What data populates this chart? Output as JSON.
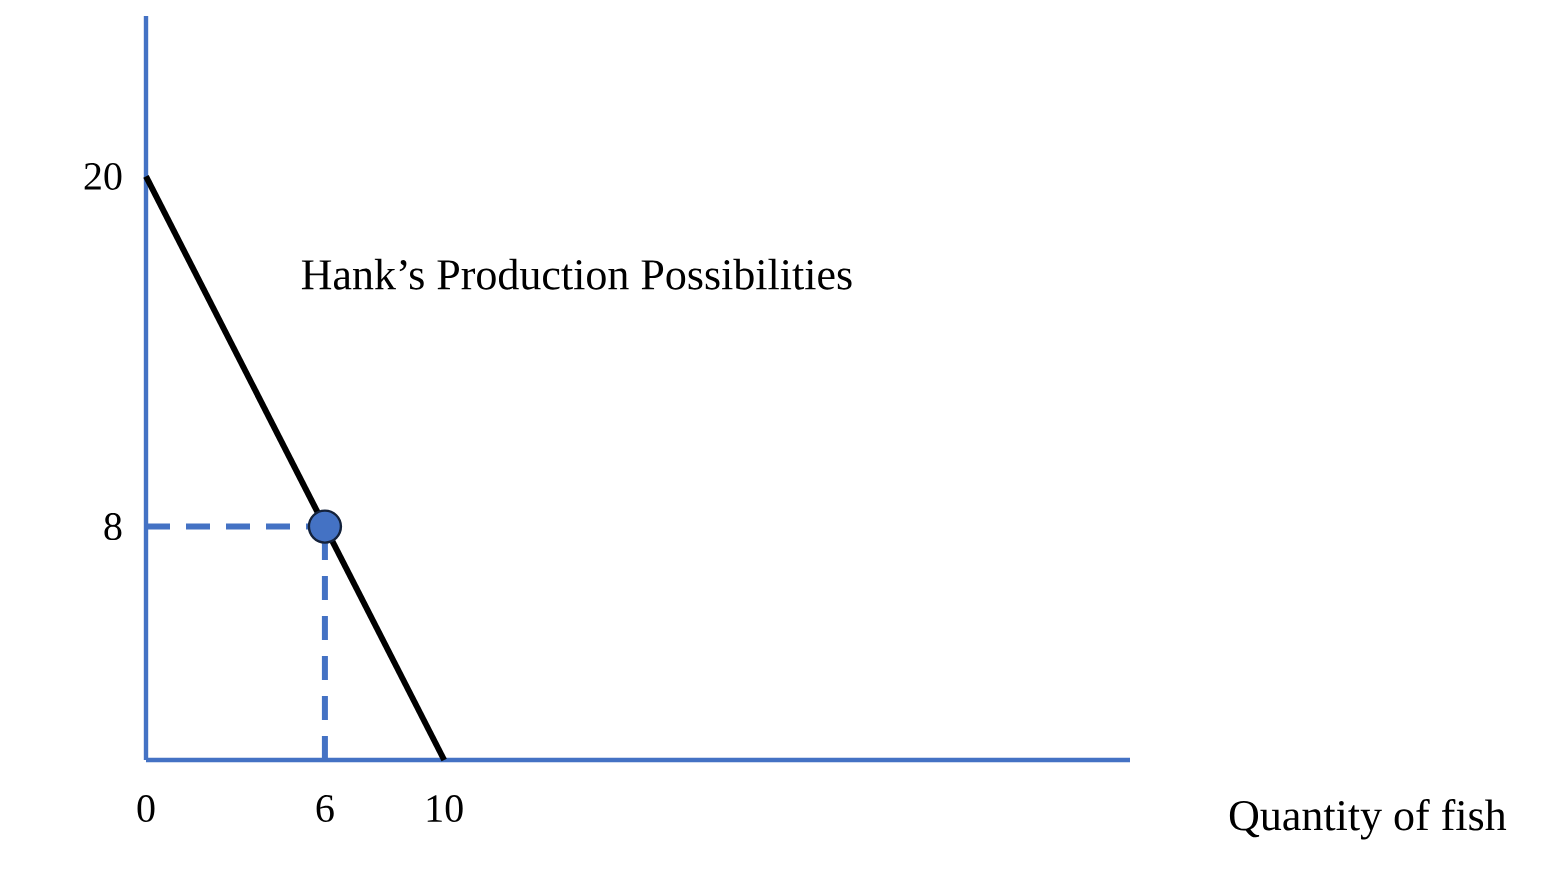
{
  "chart_data": {
    "type": "line",
    "xlabel": "Quantity of fish",
    "annotations": [
      "Hank’s Production Possibilities"
    ],
    "xlim": [
      0,
      33
    ],
    "ylim": [
      0,
      25.5
    ],
    "xticks": [
      0,
      6,
      10
    ],
    "yticks": [
      8,
      20
    ],
    "grid": false,
    "series": [
      {
        "color": "#000000",
        "x": [
          0,
          10
        ],
        "values": [
          20,
          0
        ],
        "line_style": "solid",
        "marker": "none"
      },
      {
        "color": "#4472c4",
        "x": [
          0,
          6
        ],
        "values": [
          8,
          8
        ],
        "line_style": "dashed",
        "marker": "none"
      },
      {
        "color": "#4472c4",
        "x": [
          6,
          6
        ],
        "values": [
          0,
          8
        ],
        "line_style": "dashed",
        "marker": "none"
      },
      {
        "type": "scatter",
        "color": "#4472c4",
        "x": [
          6
        ],
        "values": [
          8
        ],
        "marker": "circle"
      }
    ]
  }
}
